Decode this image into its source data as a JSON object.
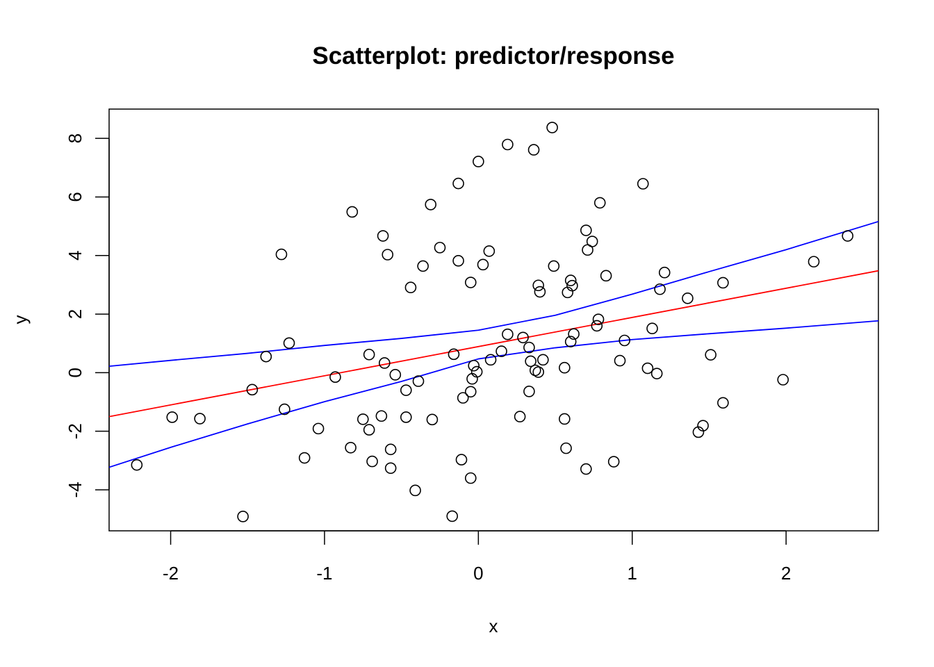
{
  "chart_data": {
    "type": "scatter",
    "title": "Scatterplot: predictor/response",
    "xlabel": "x",
    "ylabel": "y",
    "xlim": [
      -2.4,
      2.6
    ],
    "ylim": [
      -5.4,
      9.0
    ],
    "x_ticks": [
      -2,
      -1,
      0,
      1,
      2
    ],
    "x_tick_labels": [
      "-2",
      "-1",
      "0",
      "1",
      "2"
    ],
    "y_ticks": [
      -4,
      -2,
      0,
      2,
      4,
      6,
      8
    ],
    "y_tick_labels": [
      "-4",
      "-2",
      "0",
      "2",
      "4",
      "6",
      "8"
    ],
    "grid": false,
    "legend": "none",
    "points": [
      [
        -2.22,
        -3.15
      ],
      [
        -1.99,
        -1.52
      ],
      [
        -1.81,
        -1.57
      ],
      [
        -1.53,
        -4.91
      ],
      [
        -1.47,
        -0.58
      ],
      [
        -1.38,
        0.55
      ],
      [
        -1.28,
        4.04
      ],
      [
        -1.26,
        -1.25
      ],
      [
        -1.23,
        1.01
      ],
      [
        -1.13,
        -2.91
      ],
      [
        -1.04,
        -1.91
      ],
      [
        -0.93,
        -0.15
      ],
      [
        -0.83,
        -2.56
      ],
      [
        -0.82,
        5.49
      ],
      [
        -0.75,
        -1.59
      ],
      [
        -0.71,
        -1.95
      ],
      [
        -0.71,
        0.62
      ],
      [
        -0.69,
        -3.03
      ],
      [
        -0.63,
        -1.48
      ],
      [
        -0.62,
        4.67
      ],
      [
        -0.61,
        0.33
      ],
      [
        -0.59,
        4.03
      ],
      [
        -0.57,
        -2.62
      ],
      [
        -0.57,
        -3.26
      ],
      [
        -0.54,
        -0.07
      ],
      [
        -0.47,
        -1.52
      ],
      [
        -0.47,
        -0.6
      ],
      [
        -0.44,
        2.91
      ],
      [
        -0.41,
        -4.02
      ],
      [
        -0.39,
        -0.29
      ],
      [
        -0.36,
        3.64
      ],
      [
        -0.31,
        5.74
      ],
      [
        -0.3,
        -1.6
      ],
      [
        -0.25,
        4.27
      ],
      [
        -0.17,
        -4.9
      ],
      [
        -0.16,
        0.63
      ],
      [
        -0.13,
        3.82
      ],
      [
        -0.13,
        6.46
      ],
      [
        -0.11,
        -2.97
      ],
      [
        -0.1,
        -0.86
      ],
      [
        -0.05,
        -0.65
      ],
      [
        -0.05,
        3.08
      ],
      [
        -0.05,
        -3.6
      ],
      [
        -0.04,
        -0.21
      ],
      [
        -0.03,
        0.24
      ],
      [
        -0.01,
        0.03
      ],
      [
        0.0,
        7.21
      ],
      [
        0.03,
        3.69
      ],
      [
        0.07,
        4.15
      ],
      [
        0.08,
        0.44
      ],
      [
        0.15,
        0.73
      ],
      [
        0.19,
        1.31
      ],
      [
        0.19,
        7.79
      ],
      [
        0.27,
        -1.5
      ],
      [
        0.29,
        1.2
      ],
      [
        0.33,
        -0.64
      ],
      [
        0.33,
        0.86
      ],
      [
        0.34,
        0.39
      ],
      [
        0.36,
        7.61
      ],
      [
        0.37,
        0.08
      ],
      [
        0.39,
        0.02
      ],
      [
        0.39,
        2.98
      ],
      [
        0.4,
        2.76
      ],
      [
        0.42,
        0.44
      ],
      [
        0.48,
        8.37
      ],
      [
        0.49,
        3.64
      ],
      [
        0.56,
        0.17
      ],
      [
        0.56,
        -1.58
      ],
      [
        0.57,
        -2.58
      ],
      [
        0.58,
        2.74
      ],
      [
        0.6,
        3.15
      ],
      [
        0.6,
        1.06
      ],
      [
        0.61,
        2.97
      ],
      [
        0.62,
        1.32
      ],
      [
        0.7,
        4.86
      ],
      [
        0.7,
        -3.29
      ],
      [
        0.71,
        4.19
      ],
      [
        0.74,
        4.48
      ],
      [
        0.77,
        1.6
      ],
      [
        0.78,
        1.82
      ],
      [
        0.79,
        5.8
      ],
      [
        0.83,
        3.31
      ],
      [
        0.88,
        -3.04
      ],
      [
        0.92,
        0.41
      ],
      [
        0.95,
        1.1
      ],
      [
        1.07,
        6.45
      ],
      [
        1.1,
        0.15
      ],
      [
        1.13,
        1.51
      ],
      [
        1.16,
        -0.03
      ],
      [
        1.18,
        2.85
      ],
      [
        1.21,
        3.42
      ],
      [
        1.36,
        2.54
      ],
      [
        1.43,
        -2.03
      ],
      [
        1.46,
        -1.81
      ],
      [
        1.51,
        0.61
      ],
      [
        1.59,
        3.07
      ],
      [
        1.59,
        -1.03
      ],
      [
        1.98,
        -0.24
      ],
      [
        2.18,
        3.79
      ],
      [
        2.4,
        4.67
      ]
    ],
    "fit_line": {
      "color": "#ff0000",
      "x": [
        -2.4,
        2.6
      ],
      "y": [
        -1.5,
        3.48
      ]
    },
    "confidence_band": {
      "color": "#0000ff",
      "x": [
        -2.4,
        -2.0,
        -1.5,
        -1.0,
        -0.5,
        0.0,
        0.5,
        1.0,
        1.5,
        2.0,
        2.6
      ],
      "upper": [
        0.22,
        0.42,
        0.66,
        0.93,
        1.17,
        1.45,
        1.96,
        2.68,
        3.45,
        4.2,
        5.16
      ],
      "lower": [
        -3.23,
        -2.55,
        -1.75,
        -0.99,
        -0.3,
        0.47,
        0.85,
        1.13,
        1.33,
        1.52,
        1.77
      ]
    }
  }
}
